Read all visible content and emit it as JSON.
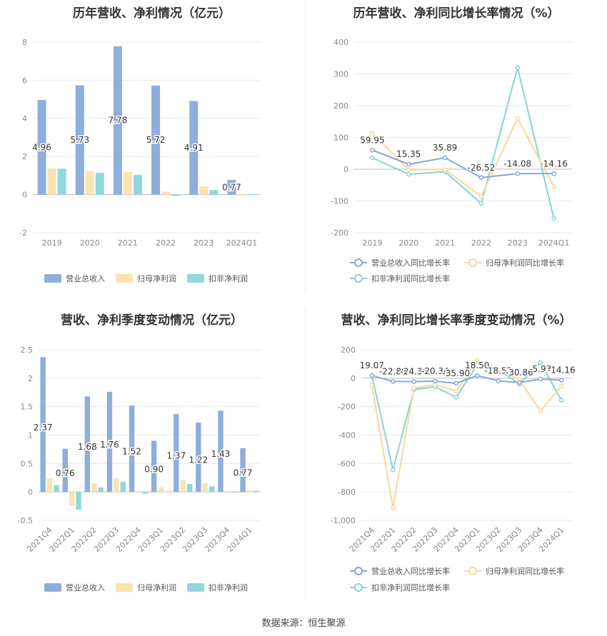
{
  "footer": "数据来源：恒生聚源",
  "colors": {
    "revenue": "#8eaedb",
    "net_profit": "#fde2b2",
    "deducted_profit": "#90d8dc",
    "revenue_line": "#8aa8d8",
    "net_profit_line": "#f9d79d",
    "deducted_line": "#86d3d7"
  },
  "chart_data": [
    {
      "id": "annual-amounts",
      "type": "bar",
      "title": "历年营收、净利情况（亿元）",
      "categories": [
        "2019",
        "2020",
        "2021",
        "2022",
        "2023",
        "2024Q1"
      ],
      "series": [
        {
          "name": "营业总收入",
          "values": [
            4.96,
            5.73,
            7.78,
            5.72,
            4.91,
            0.77
          ]
        },
        {
          "name": "归母净利润",
          "values": [
            1.38,
            1.22,
            1.2,
            0.16,
            0.43,
            0.03
          ]
        },
        {
          "name": "扣非净利润",
          "values": [
            1.36,
            1.14,
            1.03,
            -0.07,
            0.24,
            0.02
          ]
        }
      ],
      "data_labels": [
        "4.96",
        "5.73",
        "7.78",
        "5.72",
        "4.91",
        "0.77"
      ],
      "ylim": [
        -2,
        8
      ],
      "yticks": [
        "-2",
        "0",
        "2",
        "4",
        "6",
        "8"
      ],
      "legend": "bottom"
    },
    {
      "id": "annual-growth",
      "type": "line",
      "title": "历年营收、净利同比增长率情况（%）",
      "categories": [
        "2019",
        "2020",
        "2021",
        "2022",
        "2023",
        "2024Q1"
      ],
      "series": [
        {
          "name": "营业总收入同比增长率",
          "values": [
            59.95,
            15.35,
            35.89,
            -26.52,
            -14.08,
            -14.16
          ]
        },
        {
          "name": "归母净利润同比增长率",
          "values": [
            113,
            -2,
            -1,
            -86,
            160,
            -55
          ]
        },
        {
          "name": "扣非净利润同比增长率",
          "values": [
            36,
            -16,
            -8,
            -108,
            320,
            -155
          ]
        }
      ],
      "data_labels": [
        "59.95",
        "15.35",
        "35.89",
        "-26.52",
        "-14.08",
        "-14.16"
      ],
      "ylim": [
        -200,
        400
      ],
      "yticks": [
        "-200",
        "-100",
        "0",
        "100",
        "200",
        "300",
        "400"
      ],
      "legend": "bottom"
    },
    {
      "id": "quarterly-amounts",
      "type": "bar",
      "title": "营收、净利季度变动情况（亿元）",
      "categories": [
        "2021Q4",
        "2022Q1",
        "2022Q2",
        "2022Q3",
        "2022Q4",
        "2023Q1",
        "2023Q2",
        "2023Q3",
        "2023Q4",
        "2024Q1"
      ],
      "series": [
        {
          "name": "营业总收入",
          "values": [
            2.37,
            0.76,
            1.68,
            1.76,
            1.52,
            0.9,
            1.37,
            1.22,
            1.43,
            0.77
          ]
        },
        {
          "name": "归母净利润",
          "values": [
            0.24,
            -0.24,
            0.15,
            0.24,
            0.0,
            0.08,
            0.21,
            0.15,
            0.0,
            0.03
          ]
        },
        {
          "name": "扣非净利润",
          "values": [
            0.12,
            -0.31,
            0.08,
            0.18,
            -0.03,
            0.0,
            0.14,
            0.1,
            -0.01,
            0.02
          ]
        }
      ],
      "data_labels": [
        "2.37",
        "0.76",
        "1.68",
        "1.76",
        "1.52",
        "0.90",
        "1.37",
        "1.22",
        "1.43",
        "0.77"
      ],
      "ylim": [
        -0.5,
        2.5
      ],
      "yticks": [
        "-0.5",
        "0",
        "0.5",
        "1",
        "1.5",
        "2",
        "2.5"
      ],
      "legend": "bottom"
    },
    {
      "id": "quarterly-growth",
      "type": "line",
      "title": "营收、净利同比增长率季度变动情况（%）",
      "categories": [
        "2021Q4",
        "2022Q1",
        "2022Q2",
        "2022Q3",
        "2022Q4",
        "2023Q1",
        "2023Q2",
        "2023Q3",
        "2023Q4",
        "2024Q1"
      ],
      "series": [
        {
          "name": "营业总收入同比增长率",
          "values": [
            19.07,
            -22.88,
            -24.36,
            -20.34,
            -35.9,
            18.5,
            -18.52,
            -30.86,
            -5.93,
            -14.16
          ]
        },
        {
          "name": "归母净利润同比增长率",
          "values": [
            -50,
            -910,
            -70,
            -45,
            -90,
            125,
            60,
            -10,
            -230,
            -55
          ]
        },
        {
          "name": "扣非净利润同比增长率",
          "values": [
            20,
            -645,
            -80,
            -60,
            -135,
            95,
            60,
            -40,
            110,
            -155
          ]
        }
      ],
      "data_labels": [
        "19.07",
        "-22.88",
        "-24.36",
        "-20.34",
        "-35.90",
        "18.50",
        "-18.52",
        "-30.86",
        "-5.93",
        "-14.16"
      ],
      "ylim": [
        -1000,
        200
      ],
      "yticks": [
        "-1,000",
        "-800",
        "-600",
        "-400",
        "-200",
        "0",
        "200"
      ],
      "legend": "bottom"
    }
  ]
}
